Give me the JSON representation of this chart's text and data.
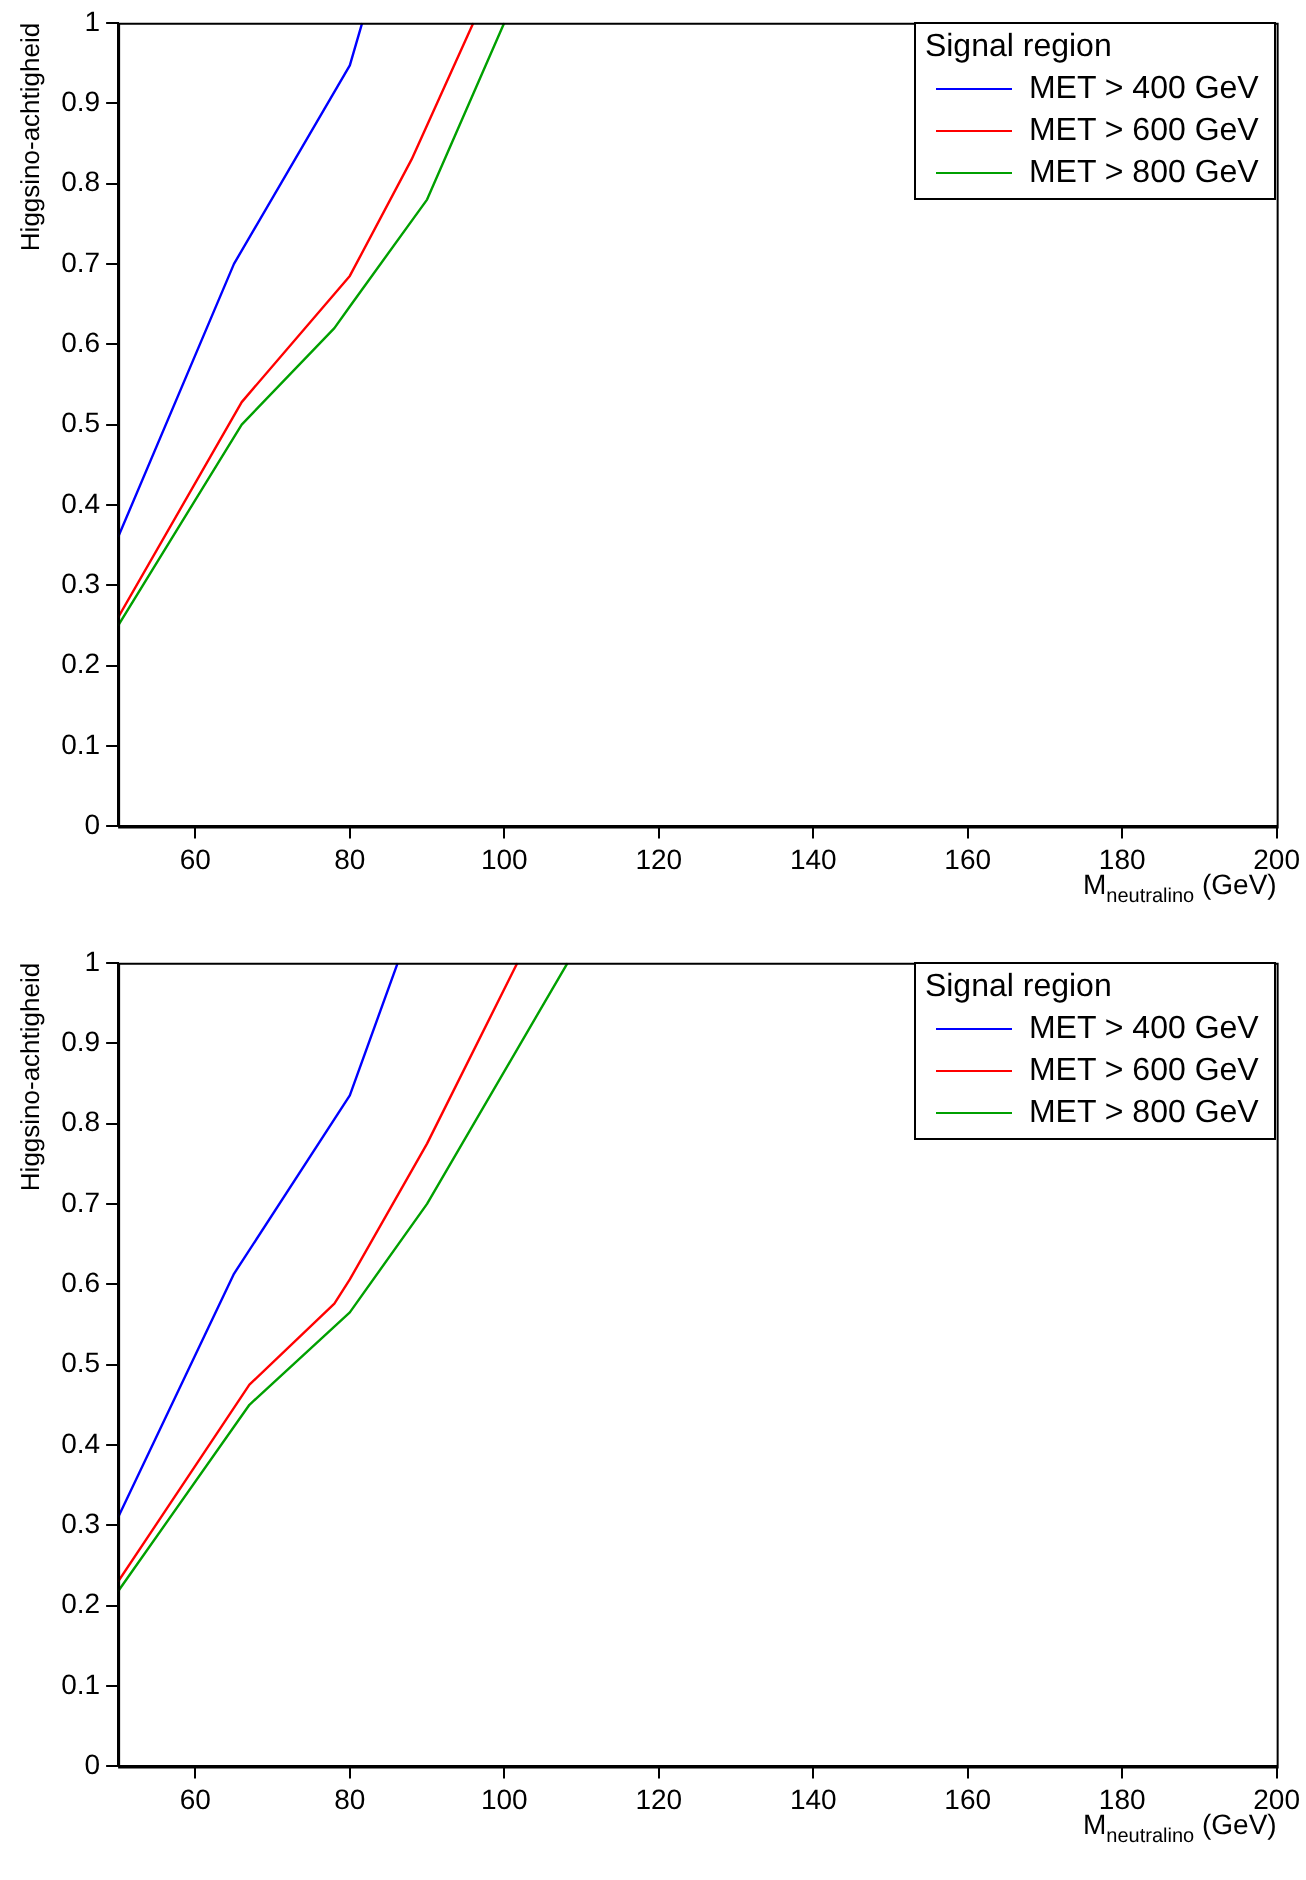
{
  "chart_data": [
    {
      "type": "line",
      "xlabel": "M$_{neutralino}$ (GeV)",
      "ylabel": "Higgsino-achtigheid",
      "legend_title": "Signal region",
      "legend": "top right",
      "grid": false,
      "xlim": [
        50,
        200
      ],
      "xticks": [
        60,
        80,
        100,
        120,
        140,
        160,
        180,
        200
      ],
      "ylim": [
        0,
        1
      ],
      "yticks": [
        0,
        0.1,
        0.2,
        0.3,
        0.4,
        0.5,
        0.6,
        0.7,
        0.8,
        0.9,
        1
      ],
      "series": [
        {
          "name": "MET > 400 GeV",
          "color": "#0000ff",
          "x": [
            50,
            65,
            80,
            81.6
          ],
          "values": [
            0.36,
            0.7,
            0.947,
            1.0
          ]
        },
        {
          "name": "MET > 600 GeV",
          "color": "#ff0000",
          "x": [
            50,
            66,
            80,
            88,
            96
          ],
          "values": [
            0.26,
            0.528,
            0.685,
            0.83,
            1.0
          ]
        },
        {
          "name": "MET > 800 GeV",
          "color": "#00a000",
          "x": [
            50,
            66,
            78,
            80,
            90,
            100
          ],
          "values": [
            0.25,
            0.5,
            0.62,
            0.647,
            0.78,
            1.0
          ]
        }
      ]
    },
    {
      "type": "line",
      "xlabel": "M$_{neutralino}$ (GeV)",
      "ylabel": "Higgsino-achtigheid",
      "legend_title": "Signal region",
      "legend": "top right",
      "grid": false,
      "xlim": [
        50,
        200
      ],
      "xticks": [
        60,
        80,
        100,
        120,
        140,
        160,
        180,
        200
      ],
      "ylim": [
        0,
        1
      ],
      "yticks": [
        0,
        0.1,
        0.2,
        0.3,
        0.4,
        0.5,
        0.6,
        0.7,
        0.8,
        0.9,
        1
      ],
      "series": [
        {
          "name": "MET > 400 GeV",
          "color": "#0000ff",
          "x": [
            50,
            65,
            80,
            86.2
          ],
          "values": [
            0.31,
            0.613,
            0.835,
            1.0
          ]
        },
        {
          "name": "MET > 600 GeV",
          "color": "#ff0000",
          "x": [
            50,
            67,
            78,
            80,
            90,
            101.7
          ],
          "values": [
            0.23,
            0.475,
            0.576,
            0.606,
            0.775,
            1.0
          ]
        },
        {
          "name": "MET > 800 GeV",
          "color": "#00a000",
          "x": [
            50,
            67,
            80,
            90,
            108.2
          ],
          "values": [
            0.218,
            0.45,
            0.565,
            0.7,
            1.0
          ]
        }
      ]
    }
  ]
}
